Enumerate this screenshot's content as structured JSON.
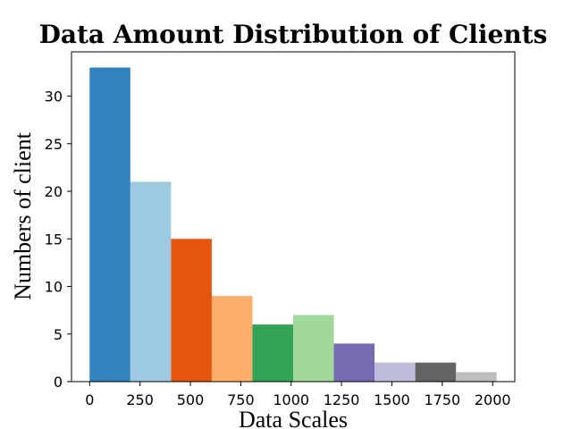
{
  "chart_data": {
    "type": "bar",
    "title": "Data Amount Distribution of Clients",
    "xlabel": "Data Scales",
    "ylabel": "Numbers of client",
    "bin_edges": [
      0,
      202,
      404,
      606,
      808,
      1010,
      1212,
      1414,
      1616,
      1818,
      2020
    ],
    "values": [
      33,
      21,
      15,
      9,
      6,
      7,
      4,
      2,
      2,
      1
    ],
    "bar_colors": [
      "#3182bd",
      "#9ecae1",
      "#e6550d",
      "#fdae6b",
      "#31a354",
      "#a1d99b",
      "#756bb1",
      "#bcbddc",
      "#636363",
      "#bdbdbd"
    ],
    "xlim": [
      -90,
      2110
    ],
    "ylim": [
      0,
      34.65
    ],
    "x_ticks": [
      0,
      250,
      500,
      750,
      1000,
      1250,
      1500,
      1750,
      2000
    ],
    "x_tick_labels": [
      "0",
      "250",
      "500",
      "750",
      "1000",
      "1250",
      "1500",
      "1750",
      "2000"
    ],
    "y_ticks": [
      0,
      5,
      10,
      15,
      20,
      25,
      30
    ],
    "y_tick_labels": [
      "0",
      "5",
      "10",
      "15",
      "20",
      "25",
      "30"
    ],
    "grid": false,
    "legend": false
  }
}
